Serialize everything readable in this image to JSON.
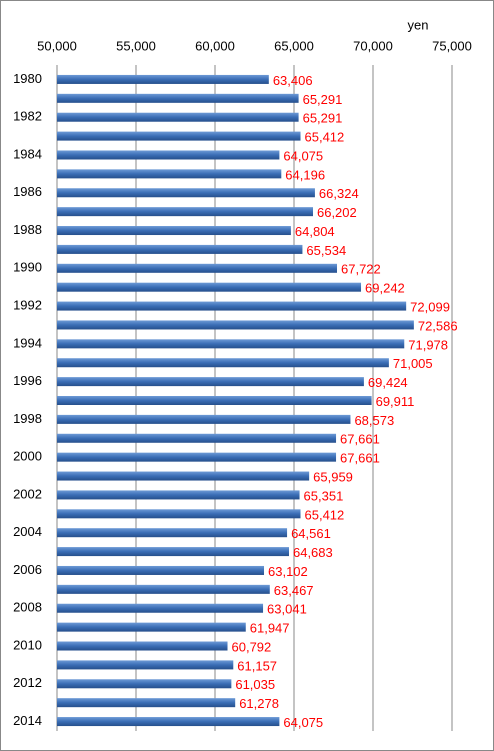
{
  "chart_data": {
    "type": "bar",
    "orientation": "horizontal",
    "unit": "yen",
    "categories": [
      "1980",
      null,
      "1982",
      null,
      "1984",
      null,
      "1986",
      null,
      "1988",
      null,
      "1990",
      null,
      "1992",
      null,
      "1994",
      null,
      "1996",
      null,
      "1998",
      null,
      "2000",
      null,
      "2002",
      null,
      "2004",
      null,
      "2006",
      null,
      "2008",
      null,
      "2010",
      null,
      "2012",
      null,
      "2014"
    ],
    "values": [
      63406,
      65291,
      65291,
      65412,
      64075,
      64196,
      66324,
      66202,
      64804,
      65534,
      67722,
      69242,
      72099,
      72586,
      71978,
      71005,
      69424,
      69911,
      68573,
      67661,
      67661,
      65959,
      65351,
      65412,
      64561,
      64683,
      63102,
      63467,
      63041,
      61947,
      60792,
      61157,
      61035,
      61278,
      64075
    ],
    "value_labels": [
      "63,406",
      "65,291",
      "65,291",
      "65,412",
      "64,075",
      "64,196",
      "66,324",
      "66,202",
      "64,804",
      "65,534",
      "67,722",
      "69,242",
      "72,099",
      "72,586",
      "71,978",
      "71,005",
      "69,424",
      "69,911",
      "68,573",
      "67,661",
      "67,661",
      "65,959",
      "65,351",
      "65,412",
      "64,561",
      "64,683",
      "63,102",
      "63,467",
      "63,041",
      "61,947",
      "60,792",
      "61,157",
      "61,035",
      "61,278",
      "64,075"
    ],
    "color": "#3a6db5",
    "label_color": "#ff0000",
    "xlim": [
      50000,
      75000
    ],
    "xticks": [
      {
        "value": 50000,
        "label": "50,000"
      },
      {
        "value": 55000,
        "label": "55,000"
      },
      {
        "value": 60000,
        "label": "60,000"
      },
      {
        "value": 65000,
        "label": "65,000"
      },
      {
        "value": 70000,
        "label": "70,000"
      },
      {
        "value": 75000,
        "label": "75,000"
      }
    ],
    "grid": true
  }
}
